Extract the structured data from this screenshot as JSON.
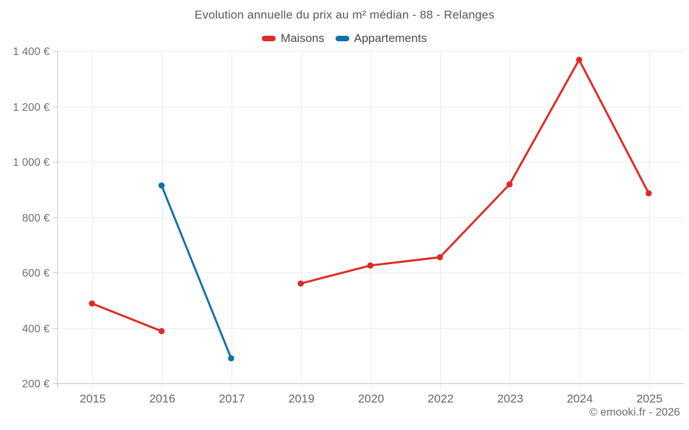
{
  "header": {
    "title": "Evolution annuelle du prix au m² médian - 88 - Relanges"
  },
  "footer": {
    "credit": "© emooki.fr - 2026"
  },
  "colors": {
    "maisons": "#df2a25",
    "appartements": "#1371a9",
    "grid": "#ececec",
    "axis": "#c9c9c9",
    "y_label": "#707070",
    "x_label": "#666666",
    "title_text": "#54585c"
  },
  "chart_data": {
    "type": "line",
    "title": "Evolution annuelle du prix au m² médian - 88 - Relanges",
    "xlabel": "",
    "ylabel": "",
    "unit": "€",
    "grid": true,
    "legend_position": "top",
    "ylim": [
      200,
      1400
    ],
    "categories": [
      "2015",
      "2016",
      "2017",
      "2019",
      "2020",
      "2022",
      "2023",
      "2024",
      "2025"
    ],
    "series": [
      {
        "name": "Maisons",
        "color": "#df2a25",
        "values": [
          488,
          388,
          null,
          560,
          625,
          655,
          918,
          1368,
          886
        ]
      },
      {
        "name": "Appartements",
        "color": "#1371a9",
        "values": [
          null,
          914,
          290,
          null,
          null,
          null,
          null,
          null,
          null
        ]
      }
    ],
    "y_ticks": [
      {
        "value": 200,
        "label": "200 €"
      },
      {
        "value": 400,
        "label": "400 €"
      },
      {
        "value": 600,
        "label": "600 €"
      },
      {
        "value": 800,
        "label": "800 €"
      },
      {
        "value": 1000,
        "label": "1 000 €"
      },
      {
        "value": 1200,
        "label": "1 200 €"
      },
      {
        "value": 1400,
        "label": "1 400 €"
      }
    ]
  }
}
